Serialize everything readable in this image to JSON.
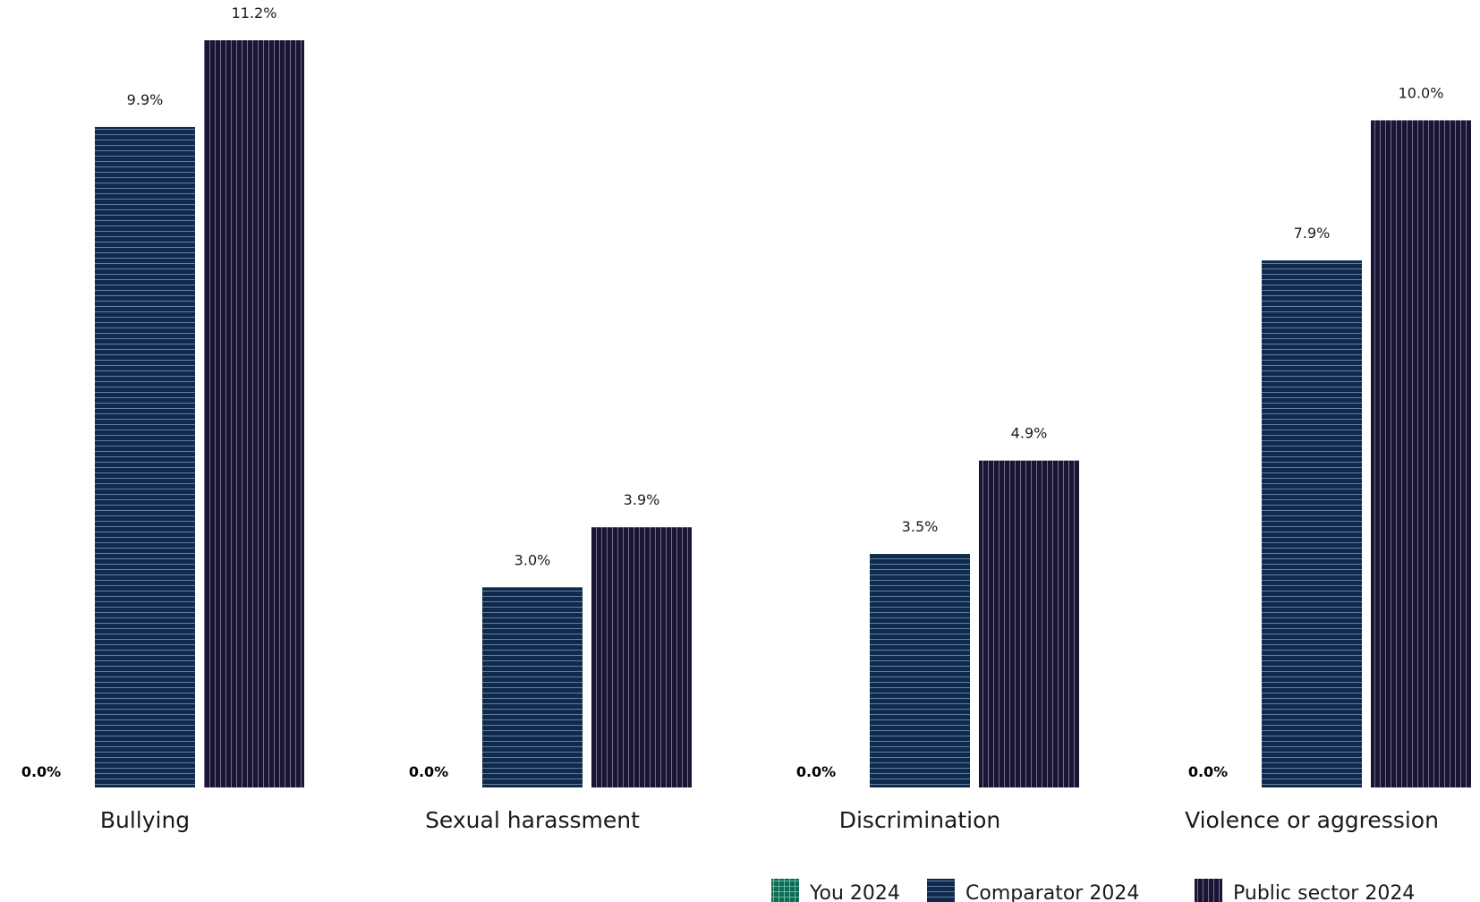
{
  "chart_data": {
    "type": "bar",
    "title": "",
    "xlabel": "",
    "ylabel": "",
    "ylim": [
      0,
      11.2
    ],
    "grid": false,
    "legend_position": "bottom-right",
    "categories": [
      "Bullying",
      "Sexual harassment",
      "Discrimination",
      "Violence or aggression"
    ],
    "series": [
      {
        "name": "You 2024",
        "values": [
          0.0,
          0.0,
          0.0,
          0.0
        ],
        "labels": [
          "0.0%",
          "0.0%",
          "0.0%",
          "0.0%"
        ],
        "color": "#0d6b55",
        "pattern": "grid"
      },
      {
        "name": "Comparator 2024",
        "values": [
          9.9,
          3.0,
          3.5,
          7.9
        ],
        "labels": [
          "9.9%",
          "3.0%",
          "3.5%",
          "7.9%"
        ],
        "color": "#0e2a4f",
        "pattern": "horizontal-lines"
      },
      {
        "name": "Public sector 2024",
        "values": [
          11.2,
          3.9,
          4.9,
          10.0
        ],
        "labels": [
          "11.2%",
          "3.9%",
          "4.9%",
          "10.0%"
        ],
        "color": "#1a1533",
        "pattern": "vertical-lines"
      }
    ]
  }
}
